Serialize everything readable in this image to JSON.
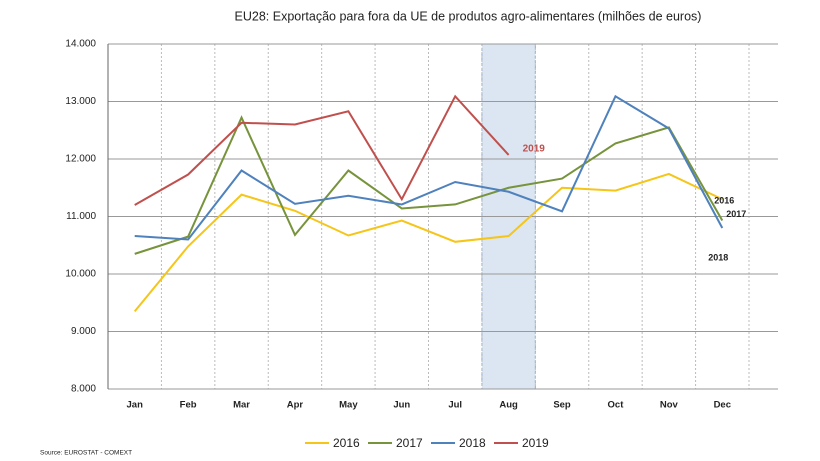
{
  "chart_data": {
    "type": "line",
    "title": "EU28: Exportação para fora da UE de produtos agro-alimentares (milhões de euros)",
    "source": "Source: EUROSTAT - COMEXT",
    "categories": [
      "Jan",
      "Feb",
      "Mar",
      "Apr",
      "May",
      "Jun",
      "Jul",
      "Aug",
      "Sep",
      "Oct",
      "Nov",
      "Dec"
    ],
    "highlight": "Aug",
    "series": [
      {
        "name": "2016",
        "color": "#f5c518",
        "values": [
          9350,
          10480,
          11380,
          11100,
          10670,
          10930,
          10560,
          10660,
          11500,
          11450,
          11740,
          11300
        ]
      },
      {
        "name": "2017",
        "color": "#77933c",
        "values": [
          10350,
          10650,
          12720,
          10680,
          11800,
          11140,
          11210,
          11500,
          11660,
          12270,
          12550,
          10930
        ]
      },
      {
        "name": "2018",
        "color": "#4f81bd",
        "values": [
          10660,
          10600,
          11800,
          11220,
          11360,
          11210,
          11600,
          11430,
          11090,
          13090,
          12530,
          10800
        ]
      },
      {
        "name": "2019",
        "color": "#c0504d",
        "values": [
          11200,
          11730,
          12630,
          12600,
          12830,
          11300,
          13090,
          12070,
          null,
          null,
          null,
          null
        ]
      }
    ],
    "ylim": [
      8000,
      14000
    ],
    "yticks": [
      {
        "value": 8000,
        "label": "8.000"
      },
      {
        "value": 9000,
        "label": "9.000"
      },
      {
        "value": 10000,
        "label": "10.000"
      },
      {
        "value": 11000,
        "label": "11.000"
      },
      {
        "value": 12000,
        "label": "12.000"
      },
      {
        "value": 13000,
        "label": "13.000"
      },
      {
        "value": 14000,
        "label": "14.000"
      }
    ],
    "grid": true,
    "legend": "bottom"
  }
}
